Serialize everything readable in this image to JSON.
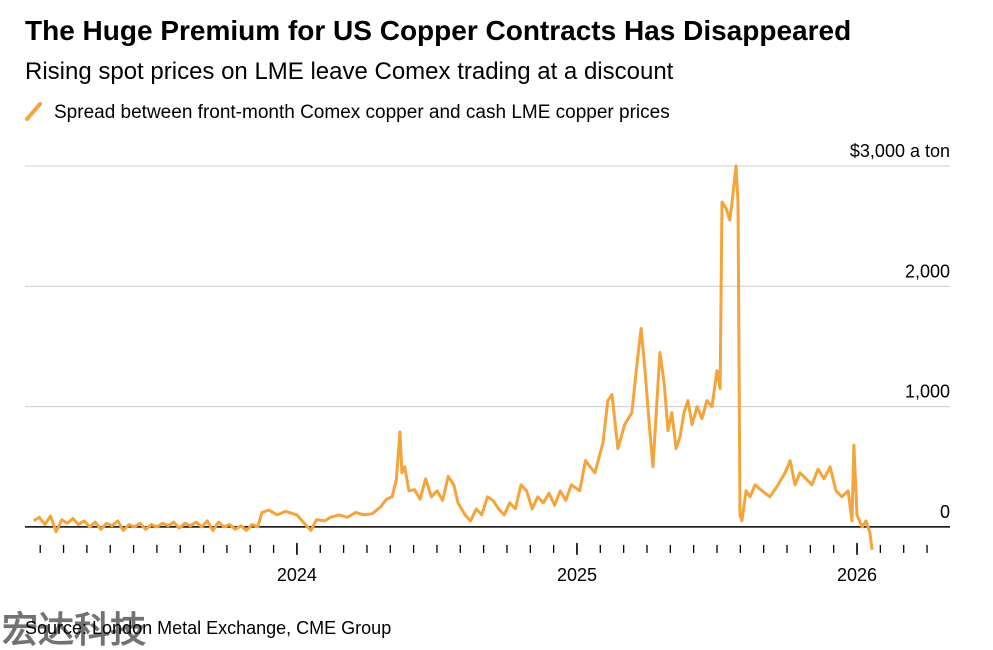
{
  "chart_data": {
    "type": "line",
    "title": "The Huge Premium for US Copper Contracts Has Disappeared",
    "subtitle": "Rising spot prices on LME leave Comex trading at a discount",
    "source": "Source: London Metal Exchange, CME Group",
    "watermark": "宏达科技",
    "xlim": [
      2023.029,
      2026.332
    ],
    "xticks": [
      2024,
      2025,
      2026
    ],
    "ylim": [
      -300,
      3000
    ],
    "yticks": [
      0,
      {
        "value": 1000,
        "label": "1,000"
      },
      {
        "value": 2000,
        "label": "2,000"
      },
      {
        "value": 3000,
        "label": "$3,000 a ton"
      }
    ],
    "grid": true,
    "x": [
      2023.06,
      2023.08,
      2023.1,
      2023.12,
      2023.14,
      2023.16,
      2023.18,
      2023.2,
      2023.22,
      2023.24,
      2023.26,
      2023.28,
      2023.3,
      2023.32,
      2023.34,
      2023.36,
      2023.38,
      2023.4,
      2023.42,
      2023.44,
      2023.46,
      2023.48,
      2023.5,
      2023.52,
      2023.54,
      2023.56,
      2023.58,
      2023.6,
      2023.62,
      2023.64,
      2023.66,
      2023.68,
      2023.7,
      2023.72,
      2023.74,
      2023.76,
      2023.78,
      2023.8,
      2023.82,
      2023.84,
      2023.86,
      2023.875,
      2023.9,
      2023.93,
      2023.96,
      2024.0,
      2024.03,
      2024.05,
      2024.07,
      2024.1,
      2024.12,
      2024.15,
      2024.18,
      2024.21,
      2024.24,
      2024.27,
      2024.3,
      2024.32,
      2024.34,
      2024.355,
      2024.368,
      2024.375,
      2024.385,
      2024.4,
      2024.42,
      2024.44,
      2024.46,
      2024.48,
      2024.5,
      2024.52,
      2024.54,
      2024.56,
      2024.575,
      2024.6,
      2024.62,
      2024.64,
      2024.66,
      2024.68,
      2024.7,
      2024.72,
      2024.74,
      2024.76,
      2024.78,
      2024.8,
      2024.82,
      2024.84,
      2024.86,
      2024.88,
      2024.9,
      2024.92,
      2024.94,
      2024.96,
      2024.98,
      2025.01,
      2025.03,
      2025.064,
      2025.093,
      2025.11,
      2025.125,
      2025.146,
      2025.17,
      2025.196,
      2025.214,
      2025.229,
      2025.243,
      2025.26,
      2025.271,
      2025.282,
      2025.296,
      2025.311,
      2025.325,
      2025.339,
      2025.354,
      2025.368,
      2025.382,
      2025.396,
      2025.411,
      2025.429,
      2025.446,
      2025.464,
      2025.482,
      2025.5,
      2025.511,
      2025.518,
      2025.532,
      2025.546,
      2025.561,
      2025.568,
      2025.575,
      2025.582,
      2025.589,
      2025.604,
      2025.618,
      2025.636,
      2025.661,
      2025.689,
      2025.718,
      2025.743,
      2025.761,
      2025.779,
      2025.796,
      2025.818,
      2025.839,
      2025.861,
      2025.882,
      2025.904,
      2025.925,
      2025.946,
      2025.968,
      2025.982,
      2025.989,
      2026.0,
      2026.018,
      2026.032,
      2026.046,
      2026.054
    ],
    "series": [
      {
        "name": "Spread between front-month Comex copper and cash LME copper prices",
        "color": "#f5a33b",
        "values": [
          50,
          80,
          20,
          90,
          -40,
          60,
          30,
          70,
          20,
          50,
          0,
          40,
          -20,
          30,
          10,
          50,
          -30,
          20,
          0,
          30,
          -20,
          20,
          0,
          30,
          10,
          40,
          -10,
          30,
          10,
          40,
          0,
          50,
          -30,
          40,
          0,
          20,
          -20,
          10,
          -30,
          20,
          0,
          120,
          140,
          100,
          130,
          100,
          20,
          -30,
          60,
          50,
          80,
          100,
          80,
          120,
          100,
          110,
          170,
          230,
          250,
          390,
          790,
          450,
          500,
          300,
          310,
          230,
          400,
          250,
          300,
          220,
          420,
          350,
          200,
          100,
          50,
          150,
          100,
          250,
          220,
          150,
          100,
          200,
          150,
          350,
          300,
          150,
          250,
          200,
          280,
          180,
          300,
          220,
          350,
          300,
          550,
          450,
          700,
          1050,
          1100,
          650,
          850,
          950,
          1350,
          1650,
          1300,
          800,
          500,
          900,
          1450,
          1200,
          800,
          950,
          650,
          750,
          950,
          1050,
          850,
          1000,
          900,
          1050,
          1000,
          1300,
          1150,
          2700,
          2650,
          2550,
          2850,
          3000,
          2700,
          100,
          50,
          300,
          250,
          350,
          300,
          250,
          350,
          450,
          550,
          350,
          450,
          400,
          350,
          480,
          400,
          500,
          300,
          250,
          300,
          50,
          680,
          100,
          0,
          50,
          -50,
          -190
        ]
      }
    ]
  }
}
